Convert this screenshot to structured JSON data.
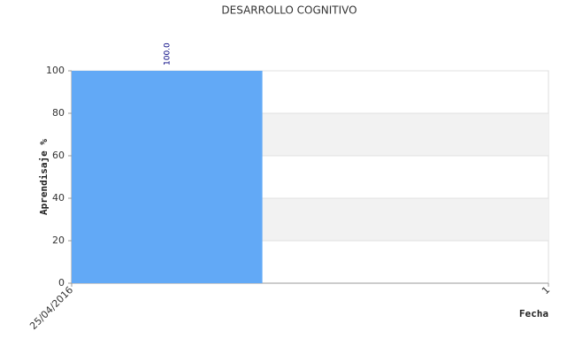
{
  "chart_data": {
    "type": "bar",
    "title": "DESARROLLO COGNITIVO",
    "x_label": "Fecha",
    "y_label": "Aprendisaje %",
    "categories": [
      "25/04/2016",
      "1"
    ],
    "values": [
      100,
      null
    ],
    "value_labels": [
      "100.0",
      null
    ],
    "color": "#62a9f6",
    "value_label_color": "#000080",
    "ylim": [
      0,
      100
    ],
    "yticks": [
      0,
      20,
      40,
      60,
      80,
      100
    ],
    "grid": true
  }
}
